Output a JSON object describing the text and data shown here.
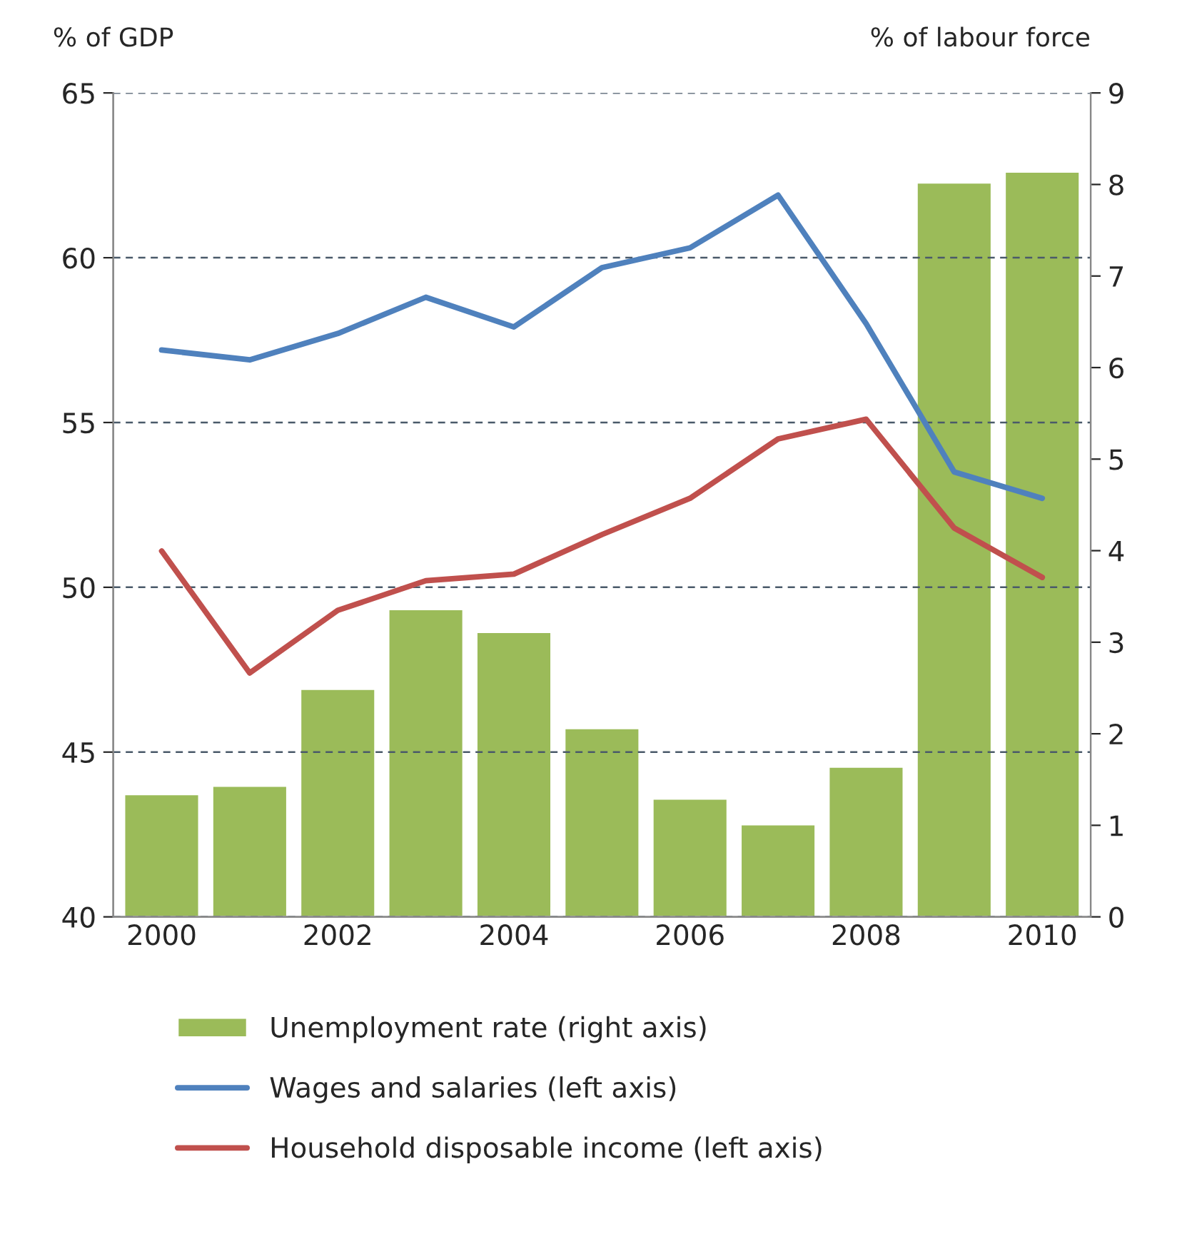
{
  "chart_data": {
    "type": "line",
    "ylabel": "% of GDP",
    "y2label": "% of labour force",
    "categories": [
      "2000",
      null,
      "2002",
      null,
      "2004",
      null,
      "2006",
      null,
      "2008",
      null,
      "2010"
    ],
    "series": [
      {
        "name": "Unemployment rate (right axis)",
        "type": "bar",
        "axis": "y2",
        "color": "#9bbb59",
        "values": [
          1.34,
          1.43,
          2.49,
          3.36,
          3.11,
          2.06,
          1.29,
          1.01,
          1.64,
          8.02,
          8.14
        ]
      },
      {
        "name": "Wages and salaries (left axis)",
        "color": "#4f81bd",
        "values": [
          57.2,
          56.9,
          57.7,
          58.8,
          57.9,
          59.7,
          60.3,
          61.9,
          58.0,
          53.5,
          52.7
        ]
      },
      {
        "name": "Household disposable income (left axis)",
        "color": "#c0504d",
        "values": [
          51.1,
          47.4,
          49.3,
          50.2,
          50.4,
          51.6,
          52.7,
          54.5,
          55.1,
          51.8,
          50.3
        ]
      }
    ],
    "ylim": [
      40,
      65
    ],
    "yticks": [
      40,
      45,
      50,
      55,
      60,
      65
    ],
    "y2lim": [
      0,
      9
    ],
    "y2ticks": [
      0,
      1,
      2,
      3,
      4,
      5,
      6,
      7,
      8,
      9
    ],
    "grid": "y",
    "legend": "bottom",
    "line_style": "solid",
    "marker": "none"
  }
}
